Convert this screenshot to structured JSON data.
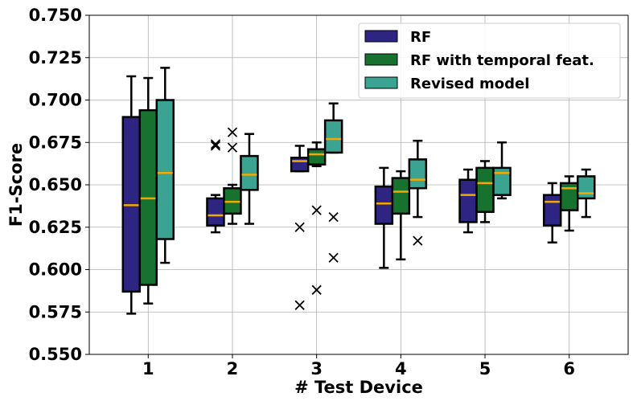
{
  "chart_data": {
    "type": "box",
    "title": "",
    "xlabel": "# Test Device",
    "ylabel": "F1-Score",
    "ylim": [
      0.55,
      0.75
    ],
    "yticks": [
      "0.550",
      "0.575",
      "0.600",
      "0.625",
      "0.650",
      "0.675",
      "0.700",
      "0.725",
      "0.750"
    ],
    "categories": [
      "1",
      "2",
      "3",
      "4",
      "5",
      "6"
    ],
    "grid": true,
    "legend_position": "top-right",
    "median_color": "#f5a800",
    "series": [
      {
        "name": "RF",
        "color": "#2e2482",
        "boxes": [
          {
            "whisker_low": 0.574,
            "q1": 0.587,
            "median": 0.638,
            "q3": 0.69,
            "whisker_high": 0.714,
            "outliers": []
          },
          {
            "whisker_low": 0.622,
            "q1": 0.626,
            "median": 0.632,
            "q3": 0.642,
            "whisker_high": 0.644,
            "outliers": [
              0.673,
              0.674
            ]
          },
          {
            "whisker_low": 0.658,
            "q1": 0.658,
            "median": 0.664,
            "q3": 0.666,
            "whisker_high": 0.673,
            "outliers": [
              0.625,
              0.579
            ]
          },
          {
            "whisker_low": 0.601,
            "q1": 0.627,
            "median": 0.639,
            "q3": 0.649,
            "whisker_high": 0.66,
            "outliers": []
          },
          {
            "whisker_low": 0.622,
            "q1": 0.628,
            "median": 0.644,
            "q3": 0.653,
            "whisker_high": 0.659,
            "outliers": []
          },
          {
            "whisker_low": 0.616,
            "q1": 0.626,
            "median": 0.64,
            "q3": 0.644,
            "whisker_high": 0.651,
            "outliers": []
          }
        ]
      },
      {
        "name": "RF with temporal feat.",
        "color": "#17722f",
        "boxes": [
          {
            "whisker_low": 0.58,
            "q1": 0.591,
            "median": 0.642,
            "q3": 0.694,
            "whisker_high": 0.713,
            "outliers": []
          },
          {
            "whisker_low": 0.627,
            "q1": 0.633,
            "median": 0.64,
            "q3": 0.648,
            "whisker_high": 0.65,
            "outliers": [
              0.681,
              0.672
            ]
          },
          {
            "whisker_low": 0.661,
            "q1": 0.662,
            "median": 0.668,
            "q3": 0.671,
            "whisker_high": 0.675,
            "outliers": [
              0.635,
              0.588
            ]
          },
          {
            "whisker_low": 0.606,
            "q1": 0.633,
            "median": 0.646,
            "q3": 0.654,
            "whisker_high": 0.658,
            "outliers": []
          },
          {
            "whisker_low": 0.628,
            "q1": 0.634,
            "median": 0.651,
            "q3": 0.66,
            "whisker_high": 0.664,
            "outliers": []
          },
          {
            "whisker_low": 0.623,
            "q1": 0.635,
            "median": 0.648,
            "q3": 0.651,
            "whisker_high": 0.655,
            "outliers": []
          }
        ]
      },
      {
        "name": "Revised model",
        "color": "#3aa392",
        "boxes": [
          {
            "whisker_low": 0.604,
            "q1": 0.618,
            "median": 0.657,
            "q3": 0.7,
            "whisker_high": 0.719,
            "outliers": []
          },
          {
            "whisker_low": 0.627,
            "q1": 0.647,
            "median": 0.656,
            "q3": 0.667,
            "whisker_high": 0.68,
            "outliers": []
          },
          {
            "whisker_low": 0.669,
            "q1": 0.669,
            "median": 0.677,
            "q3": 0.688,
            "whisker_high": 0.698,
            "outliers": [
              0.631,
              0.607
            ]
          },
          {
            "whisker_low": 0.631,
            "q1": 0.648,
            "median": 0.653,
            "q3": 0.665,
            "whisker_high": 0.676,
            "outliers": [
              0.617
            ]
          },
          {
            "whisker_low": 0.642,
            "q1": 0.644,
            "median": 0.657,
            "q3": 0.66,
            "whisker_high": 0.675,
            "outliers": []
          },
          {
            "whisker_low": 0.631,
            "q1": 0.642,
            "median": 0.645,
            "q3": 0.655,
            "whisker_high": 0.659,
            "outliers": []
          }
        ]
      }
    ]
  }
}
